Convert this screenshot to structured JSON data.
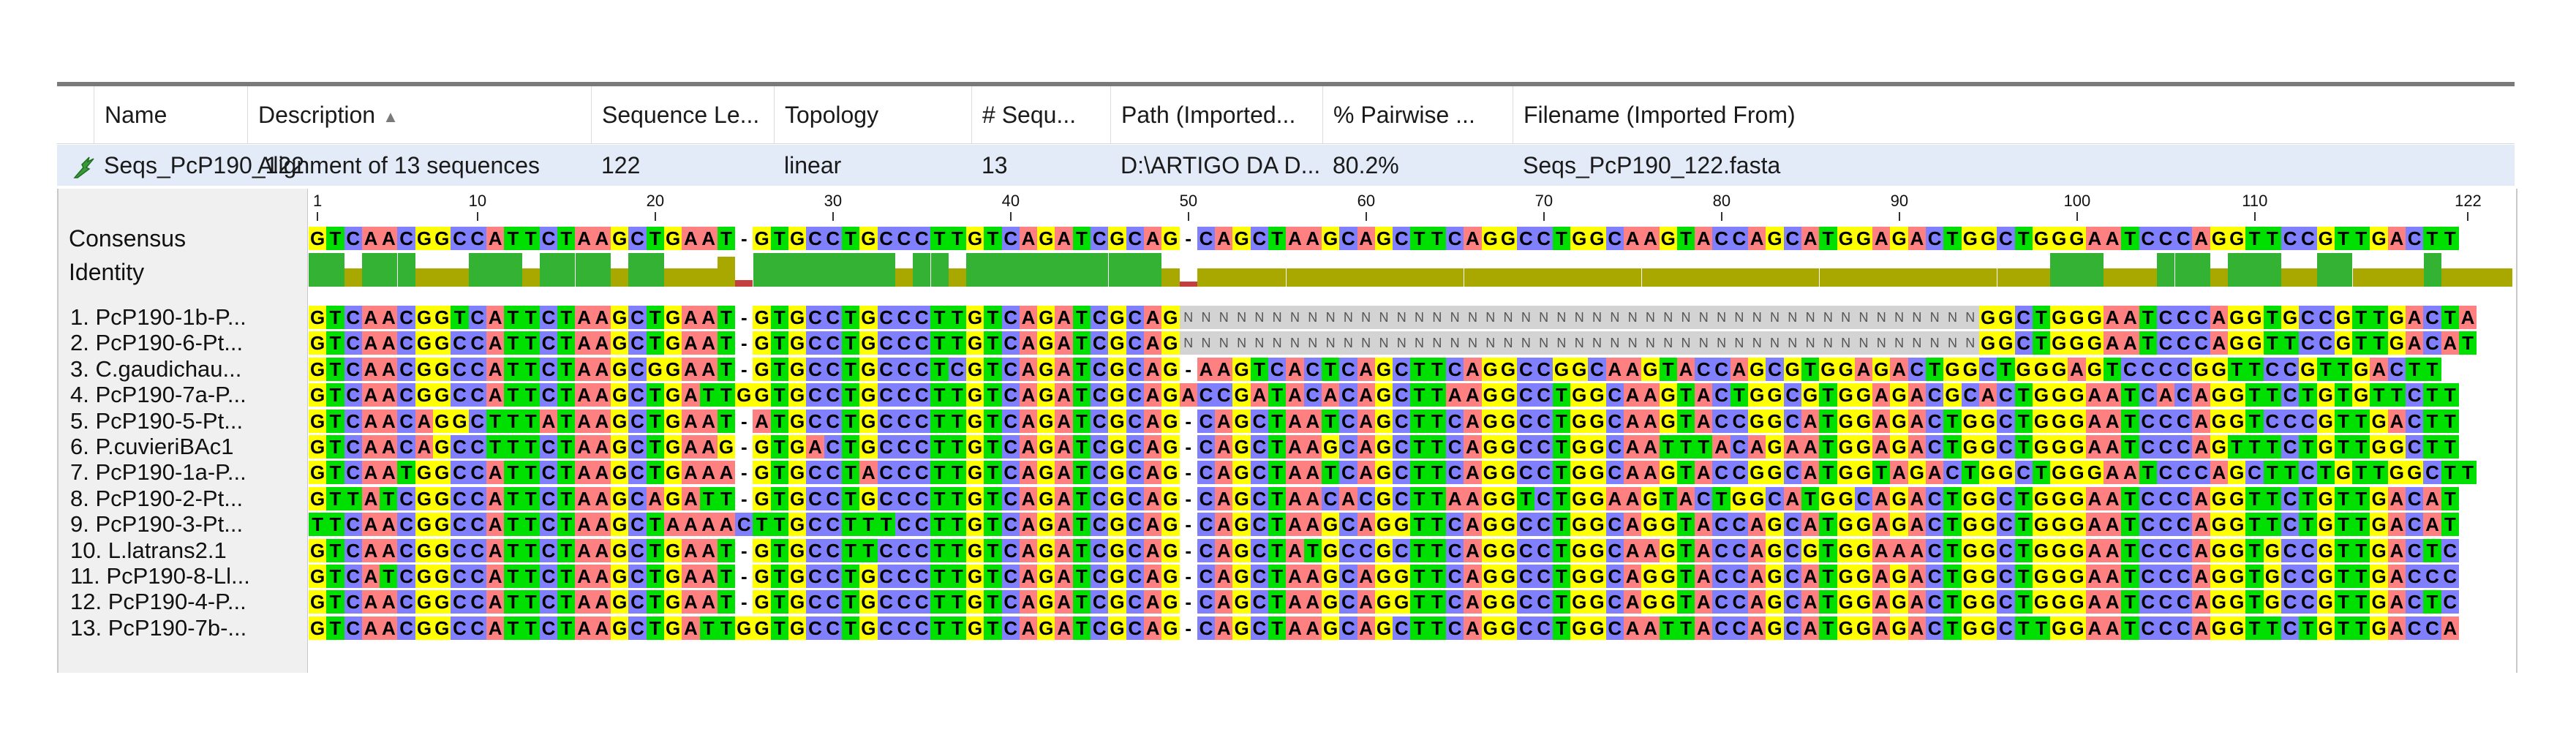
{
  "columns": [
    {
      "label": "Name",
      "sort": ""
    },
    {
      "label": "Description",
      "sort": "▲"
    },
    {
      "label": "Sequence Le...",
      "sort": ""
    },
    {
      "label": "Topology",
      "sort": ""
    },
    {
      "label": "# Sequ...",
      "sort": ""
    },
    {
      "label": "Path (Imported...",
      "sort": ""
    },
    {
      "label": "% Pairwise ...",
      "sort": ""
    },
    {
      "label": "Filename (Imported From)",
      "sort": ""
    }
  ],
  "document": {
    "icon": "alignment-icon",
    "name": "Seqs_PcP190_122",
    "description": "Alignment of 13 sequences",
    "length": "122",
    "topology": "linear",
    "num_sequences": "13",
    "path": "D:\\ARTIGO DA D...",
    "pairwise": "80.2%",
    "filename": "Seqs_PcP190_122.fasta"
  },
  "consensus_label": "Consensus",
  "identity_label": "Identity",
  "ruler": [
    1,
    10,
    20,
    30,
    40,
    50,
    60,
    70,
    80,
    90,
    100,
    110,
    122
  ],
  "consensus": "GTCAACGGCCATTCTAAGCTGAAT-GTGCCTGCCCTTGTCAGATCGCAG-CAGCTAAGCAGCTTCAGGCCTGGCAAGTACCAGCATGGAGACTGGCTGGGAATCCCAGGTTCCGTTGACTT",
  "identity": [
    1,
    1,
    0.55,
    1,
    1,
    1,
    0.55,
    0.55,
    0.55,
    1,
    1,
    1,
    0.55,
    1,
    1,
    1,
    1,
    0.55,
    1,
    1,
    0.55,
    0.55,
    0.55,
    0.9,
    0.2,
    1,
    1,
    1,
    1,
    1,
    1,
    1,
    1,
    0.55,
    1,
    1,
    0.55,
    1,
    1,
    1,
    1,
    1,
    1,
    1,
    1,
    1,
    1,
    1,
    0.55,
    0.15,
    0.55,
    0.55,
    0.55,
    0.55,
    0.55,
    0.55,
    0.55,
    0.55,
    0.55,
    0.55,
    0.55,
    0.55,
    0.55,
    0.55,
    0.55,
    0.55,
    0.55,
    0.55,
    0.55,
    0.55,
    0.55,
    0.55,
    0.55,
    0.55,
    0.55,
    0.55,
    0.55,
    0.55,
    0.55,
    0.55,
    0.55,
    0.55,
    0.55,
    0.55,
    0.55,
    0.55,
    0.55,
    0.55,
    0.55,
    0.55,
    0.55,
    0.55,
    0.55,
    0.55,
    0.55,
    0.55,
    0.55,
    0.55,
    1,
    1,
    1,
    0.55,
    0.55,
    0.55,
    1,
    1,
    1,
    0.55,
    1,
    1,
    1,
    0.55,
    0.55,
    1,
    1,
    0.55,
    0.55,
    0.55,
    0.55,
    1,
    0.55,
    0.55,
    0.55,
    0.55
  ],
  "sequences": [
    {
      "name": "1. PcP190-1b-P...",
      "seq": "GTCAACGGTCATTCTAAGCTGAAT-GTGCCTGCCCTTGTCAGATCGCAGNNNNNNNNNNNNNNNNNNNNNNNNNNNNNNNNNNNNNNNNNNNNNGGCTGGGAATCCCAGGTGCCGTTGACTA"
    },
    {
      "name": "2. PcP190-6-Pt...",
      "seq": "GTCAACGGCCATTCTAAGCTGAAT-GTGCCTGCCCTTGTCAGATCGCAGNNNNNNNNNNNNNNNNNNNNNNNNNNNNNNNNNNNNNNNNNNNNNGGCTGGGAATCCCAGGTTCCGTTGACAT"
    },
    {
      "name": "3. C.gaudichau...",
      "seq": "GTCAACGGCCATTCTAAGCGGAAT-GTGCCTGCCCTCGTCAGATCGCAG-AAGTCACTCAGCTTCAGGCCGGCAAGTACCAGCGTGGAGACTGGCTGGGAGTCCCCGGTTCCGTTGACTT"
    },
    {
      "name": "4. PcP190-7a-P...",
      "seq": "GTCAACGGCCATTCTAAGCTGATTGGTGCCTGCCCTTGTCAGATCGCAGACCGATACACAGCTTAAGGCCTGGCAAGTACTGGCGTGGAGACGCACTGGGAATCACAGGTTCTGTGTTCTT"
    },
    {
      "name": "5. PcP190-5-Pt...",
      "seq": "GTCAACAGGCTTTATAAGCTGAAT-ATGCCTGCCCTTGTCAGATCGCAG-CAGCTAATCAGCTTCAGGCCTGGCAAGTACCGGCATGGAGACTGGCTGGGAATCCCAGGTCCCGTTGACTT"
    },
    {
      "name": "6. P.cuvieriBAc1",
      "seq": "GTCAACAGCCTTTCTAAGCTGAAG-GTGACTGCCCTTGTCAGATCGCAG-CAGCTAAGCAGCTTCAGGCCTGGCAATTTACAGAATGGAGACTGGCTGGGAATCCCAGTTTCTGTTGGCTT"
    },
    {
      "name": "7. PcP190-1a-P...",
      "seq": "GTCAATGGCCATTCTAAGCTGAAA-GTGCCTACCCTTGTCAGATCGCAG-CAGCTAATCAGCTTCAGGCCTGGCAAGTACCGGCATGGTAGACTGGCTGGGAATCCCAGCTTCTGTTGGCTT"
    },
    {
      "name": "8. PcP190-2-Pt...",
      "seq": "GTTATCGGCCATTCTAAGCAGATT-GTGCCTGCCCTTGTCAGATCGCAG-CAGCTAACACGCTTAAGGTCTGGAAGTACTGGCATGGCAGACTGGCTGGGAATCCCAGGTTCTGTTGACAT"
    },
    {
      "name": "9. PcP190-3-Pt...",
      "seq": "TTCAACGGCCATTCTAAGCTAAAACTTGCCTTTCCTTGTCAGATCGCAG-CAGCTAAGCAGGTTCAGGCCTGGCAGGTACCAGCATGGAGACTGGCTGGGAATCCCAGGTTCTGTTGACAT"
    },
    {
      "name": "10. L.latrans2.1",
      "seq": "GTCAACGGCCATTCTAAGCTGAAT-GTGCCTTCCCTTGTCAGATCGCAG-CAGCTATGCCGCTTCAGGCCTGGCAAGTACCAGCGTGGAAACTGGCTGGGAATCCCAGGTGCCGTTGACTC"
    },
    {
      "name": "11. PcP190-8-Ll...",
      "seq": "GTCATCGGCCATTCTAAGCTGAAT-GTGCCTGCCCTTGTCAGATCGCAG-CAGCTAAGCAGGTTCAGGCCTGGCAGGTACCAGCATGGAGACTGGCTGGGAATCCCAGGTGCCGTTGACCC"
    },
    {
      "name": "12. PcP190-4-P...",
      "seq": "GTCAACGGCCATTCTAAGCTGAAT-GTGCCTGCCCTTGTCAGATCGCAG-CAGCTAAGCAGGTTCAGGCCTGGCAGGTACCAGCATGGAGACTGGCTGGGAATCCCAGGTGCCGTTGACTC"
    },
    {
      "name": "13. PcP190-7b-...",
      "seq": "GTCAACGGCCATTCTAAGCTGATTGGTGCCTGCCCTTGTCAGATCGCAG-CAGCTAAGCAGCTTCAGGCCTGGCAATTACCAGCATGGAGACTGGCTTGGAATCCCAGGTTCTGTTGACCA"
    }
  ],
  "colors": {
    "A": "#ff8080",
    "C": "#8080ff",
    "G": "#ffff00",
    "T": "#00e000",
    "gap": "#ffffff",
    "N": "#d3d3d3",
    "identity_high": "#33b233",
    "identity_mid": "#a8a800",
    "identity_low": "#c44040"
  }
}
